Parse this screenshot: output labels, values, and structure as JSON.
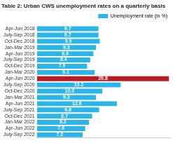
{
  "chart_data": {
    "type": "bar",
    "title": "Table 2: Urban CWS unemployment rates on a quarterly basis",
    "orientation": "horizontal",
    "categories": [
      "Apr-Jun 2018",
      "July-Sep 2018",
      "Oct-Dec 2018",
      "Jan-Mar 2019",
      "Apr-Jun 2019",
      "July-Sep 2019",
      "Oct-Dec 2019",
      "Jan-Mar 2020",
      "Apr-Jun 2020",
      "July-Sep 2020",
      "Oct-Dec 2020",
      "Jan-Mar 2021",
      "Apr-Jun 2021",
      "July-Sep 2021",
      "Oct-Dec 2021",
      "Jan-Mar 2022",
      "Apr-Jun 2022",
      "July-Sep 2022"
    ],
    "series": [
      {
        "name": "Unemployment rate (in %)",
        "colors": [
          "#2cb5e8",
          "#2cb5e8",
          "#2cb5e8",
          "#2cb5e8",
          "#2cb5e8",
          "#2cb5e8",
          "#2cb5e8",
          "#2cb5e8",
          "#b81c22",
          "#2cb5e8",
          "#2cb5e8",
          "#2cb5e8",
          "#2cb5e8",
          "#2cb5e8",
          "#2cb5e8",
          "#2cb5e8",
          "#2cb5e8",
          "#2cb5e8"
        ],
        "values": [
          9.7,
          9.7,
          9.9,
          9.3,
          8.9,
          8.4,
          7.9,
          9.1,
          20.8,
          13.2,
          10.3,
          9.3,
          12.6,
          9.8,
          8.7,
          8.2,
          7.6,
          7.2
        ]
      }
    ],
    "xlim": [
      0,
      21
    ],
    "grid": false,
    "legend": "top-right",
    "data_labels": true,
    "tick_labels": "y"
  }
}
